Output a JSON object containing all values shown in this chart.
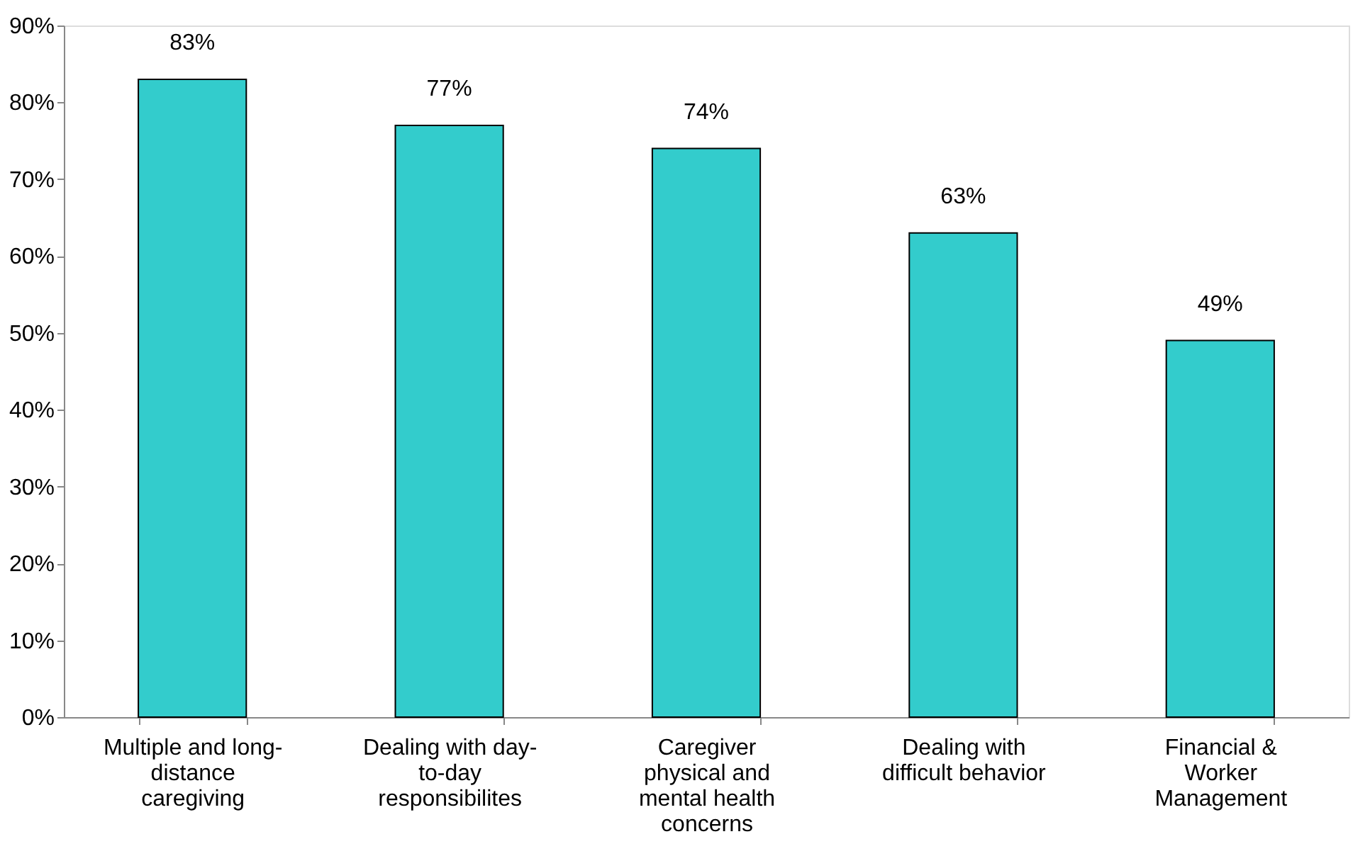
{
  "chart_data": {
    "type": "bar",
    "categories": [
      "Multiple and long-\ndistance\ncaregiving",
      "Dealing with day-\nto-day\nresponsibilites",
      "Caregiver\nphysical and\nmental health\nconcerns",
      "Dealing with\ndifficult behavior",
      "Financial &\nWorker\nManagement"
    ],
    "values": [
      83,
      77,
      74,
      63,
      49
    ],
    "value_labels": [
      "83%",
      "77%",
      "74%",
      "63%",
      "49%"
    ],
    "color": "#33cccc",
    "ylim": [
      0,
      90
    ],
    "yticks": [
      {
        "value": 0,
        "label": "0%"
      },
      {
        "value": 10,
        "label": "10%"
      },
      {
        "value": 20,
        "label": "20%"
      },
      {
        "value": 30,
        "label": "30%"
      },
      {
        "value": 40,
        "label": "40%"
      },
      {
        "value": 50,
        "label": "50%"
      },
      {
        "value": 60,
        "label": "60%"
      },
      {
        "value": 70,
        "label": "70%"
      },
      {
        "value": 80,
        "label": "80%"
      },
      {
        "value": 90,
        "label": "90%"
      }
    ],
    "grid": false
  }
}
